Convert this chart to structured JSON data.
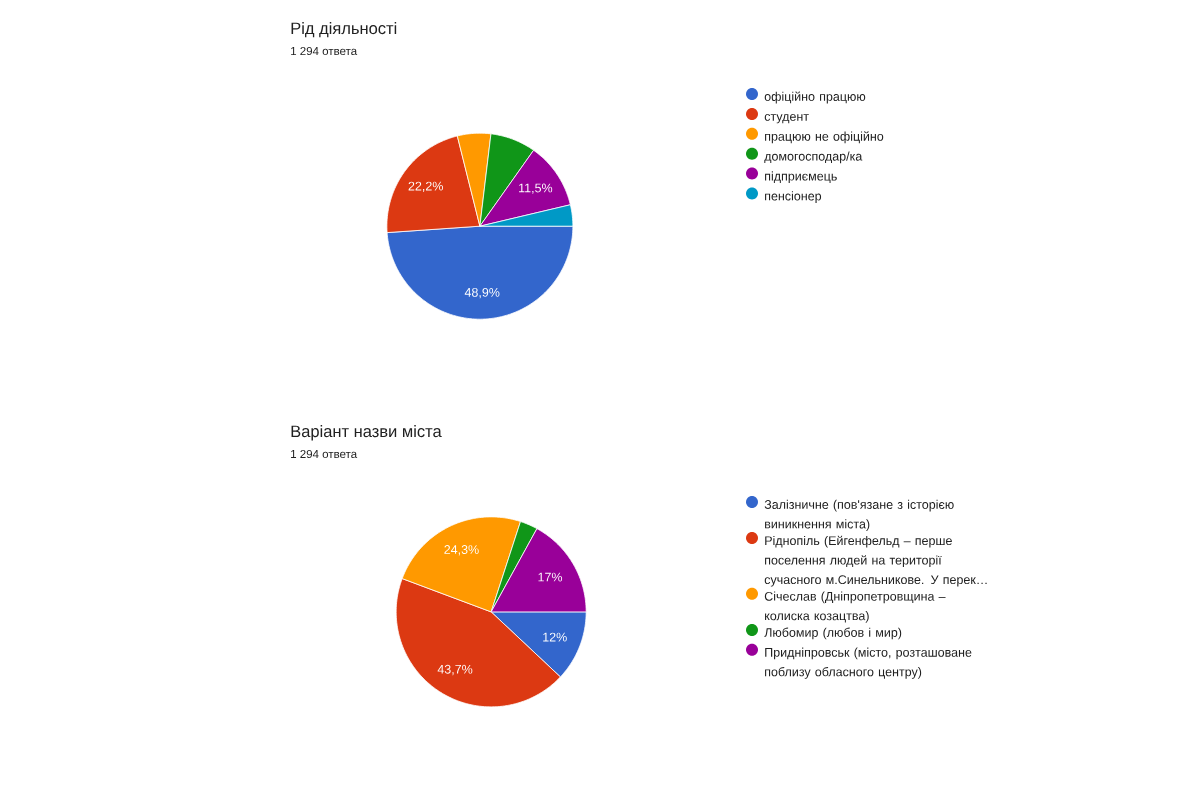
{
  "chart_data": [
    {
      "type": "pie",
      "title": "Рід діяльності",
      "subtitle": "1 294 ответа",
      "categories": [
        "офіційно працюю",
        "студент",
        "працюю не офіційно",
        "домогосподар/ка",
        "підприємець",
        "пенсіонер"
      ],
      "values": [
        48.9,
        22.2,
        5.8,
        7.9,
        11.5,
        3.7
      ],
      "value_labels": [
        "48,9%",
        "22,2%",
        null,
        null,
        "11,5%",
        null
      ],
      "colors": [
        "#3366cc",
        "#dc3912",
        "#ff9900",
        "#109618",
        "#990099",
        "#0099c6"
      ],
      "legend": "right"
    },
    {
      "type": "pie",
      "title": "Варіант назви міста",
      "subtitle": "1 294 ответа",
      "categories": [
        "Залізничне (пов'язане з історією виникнення міста)",
        "Ріднопіль (Ейгенфельд – перше поселення людей на території сучасного м.Синельникове. У перек…",
        "Січеслав (Дніпропетровщина – колиска козацтва)",
        "Любомир (любов і мир)",
        "Придніпровськ (місто, розташоване поблизу обласного центру)"
      ],
      "values": [
        12,
        43.7,
        24.3,
        3,
        17
      ],
      "value_labels": [
        "12%",
        "43,7%",
        "24,3%",
        null,
        "17%"
      ],
      "colors": [
        "#3366cc",
        "#dc3912",
        "#ff9900",
        "#109618",
        "#990099"
      ],
      "legend": "right"
    }
  ]
}
